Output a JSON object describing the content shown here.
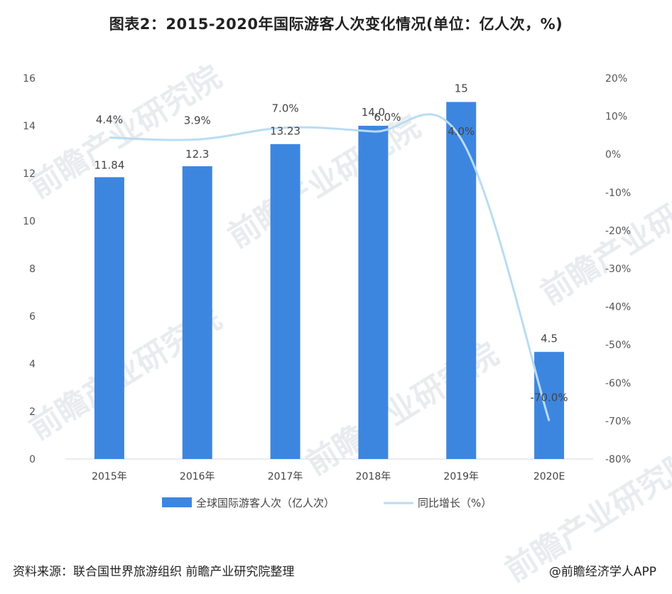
{
  "title": "图表2：2015-2020年国际游客人次变化情况(单位：亿人次，%)",
  "footer": {
    "source": "资料来源：联合国世界旅游组织 前瞻产业研究院整理",
    "credit": "@前瞻经济学人APP"
  },
  "watermark": "前瞻产业研究院",
  "chart_data": {
    "type": "bar",
    "categories": [
      "2015年",
      "2016年",
      "2017年",
      "2018年",
      "2019年",
      "2020E"
    ],
    "series": [
      {
        "name": "全球国际游客人次（亿人次）",
        "type": "bar",
        "axis": "left",
        "values": [
          11.84,
          12.3,
          13.23,
          14.0,
          15,
          4.5
        ],
        "labels": [
          "11.84",
          "12.3",
          "13.23",
          "14.0",
          "15",
          "4.5"
        ],
        "color": "#3d86e0"
      },
      {
        "name": "同比增长（%）",
        "type": "line",
        "axis": "right",
        "values": [
          4.4,
          3.9,
          7.0,
          6.0,
          4.0,
          -70.0
        ],
        "labels": [
          "4.4%",
          "3.9%",
          "7.0%",
          "6.0%",
          "4.0%",
          "-70.0%"
        ],
        "color": "#b9dcf3"
      }
    ],
    "y_left": {
      "min": 0,
      "max": 16,
      "ticks": [
        "0",
        "2",
        "4",
        "6",
        "8",
        "10",
        "12",
        "14",
        "16"
      ]
    },
    "y_right": {
      "min": -80,
      "max": 20,
      "ticks": [
        "-80%",
        "-70%",
        "-60%",
        "-50%",
        "-40%",
        "-30%",
        "-20%",
        "-10%",
        "0%",
        "10%",
        "20%"
      ]
    },
    "grid": false,
    "legend_position": "bottom"
  }
}
